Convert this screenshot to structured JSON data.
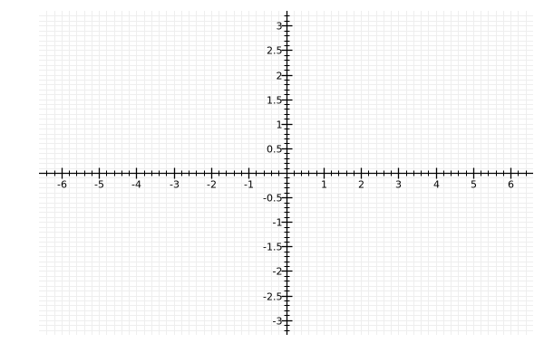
{
  "chart_data": {
    "type": "line",
    "title": "",
    "xlabel": "",
    "ylabel": "",
    "xlim": [
      -6.6,
      6.6
    ],
    "ylim": [
      -3.3,
      3.3
    ],
    "x_ticks": [
      -6,
      -5,
      -4,
      -3,
      -2,
      -1,
      1,
      2,
      3,
      4,
      5,
      6
    ],
    "x_tick_labels": [
      "-6",
      "-5",
      "-4",
      "-3",
      "-2",
      "-1",
      "1",
      "2",
      "3",
      "4",
      "5",
      "6"
    ],
    "y_ticks": [
      3,
      2.5,
      2,
      1.5,
      1,
      0.5,
      -0.5,
      -1,
      -1.5,
      -2,
      -2.5,
      -3
    ],
    "y_tick_labels": [
      "3",
      "2.5",
      "2",
      "1.5",
      "1",
      "0.5",
      "-0.5",
      "-1",
      "-1.5",
      "-2",
      "-2.5",
      "-3"
    ],
    "x_minor_step": 0.2,
    "y_minor_step": 0.1,
    "grid": true,
    "grid_color": "#eeeeee",
    "axis_color": "#000000",
    "series": []
  }
}
